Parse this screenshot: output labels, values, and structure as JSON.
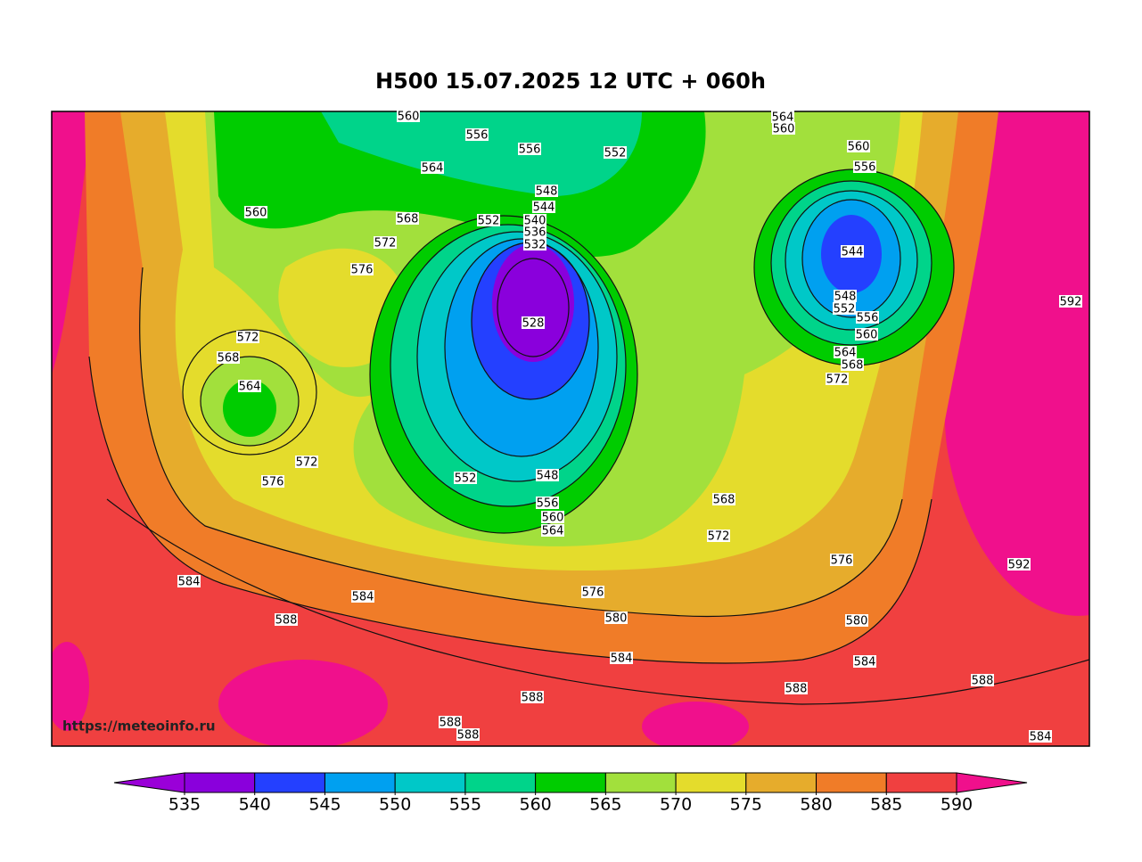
{
  "header": {
    "title": "H500  15.07.2025 12 UTC + 060h"
  },
  "watermark": "https://meteoinfo.ru",
  "map": {
    "contour_labels": [
      "560",
      "556",
      "556",
      "552",
      "564",
      "560",
      "560",
      "556",
      "564",
      "548",
      "544",
      "540",
      "536",
      "532",
      "552",
      "568",
      "560",
      "572",
      "576",
      "544",
      "548",
      "552",
      "556",
      "560",
      "564",
      "568",
      "572",
      "592",
      "528",
      "572",
      "568",
      "564",
      "572",
      "576",
      "552",
      "548",
      "556",
      "560",
      "564",
      "568",
      "572",
      "576",
      "592",
      "584",
      "584",
      "576",
      "580",
      "588",
      "580",
      "584",
      "584",
      "588",
      "588",
      "588",
      "588",
      "588",
      "584"
    ]
  },
  "colorbar": {
    "ticks": [
      535,
      540,
      545,
      550,
      555,
      560,
      565,
      570,
      575,
      580,
      585,
      590
    ],
    "colors": [
      "#9a00d8",
      "#8a00dc",
      "#2440ff",
      "#00a0f0",
      "#00c8c8",
      "#00d48a",
      "#00cc00",
      "#a2e03c",
      "#e4dc2c",
      "#e6ac2c",
      "#f07c28",
      "#f04040",
      "#f0108c"
    ]
  }
}
